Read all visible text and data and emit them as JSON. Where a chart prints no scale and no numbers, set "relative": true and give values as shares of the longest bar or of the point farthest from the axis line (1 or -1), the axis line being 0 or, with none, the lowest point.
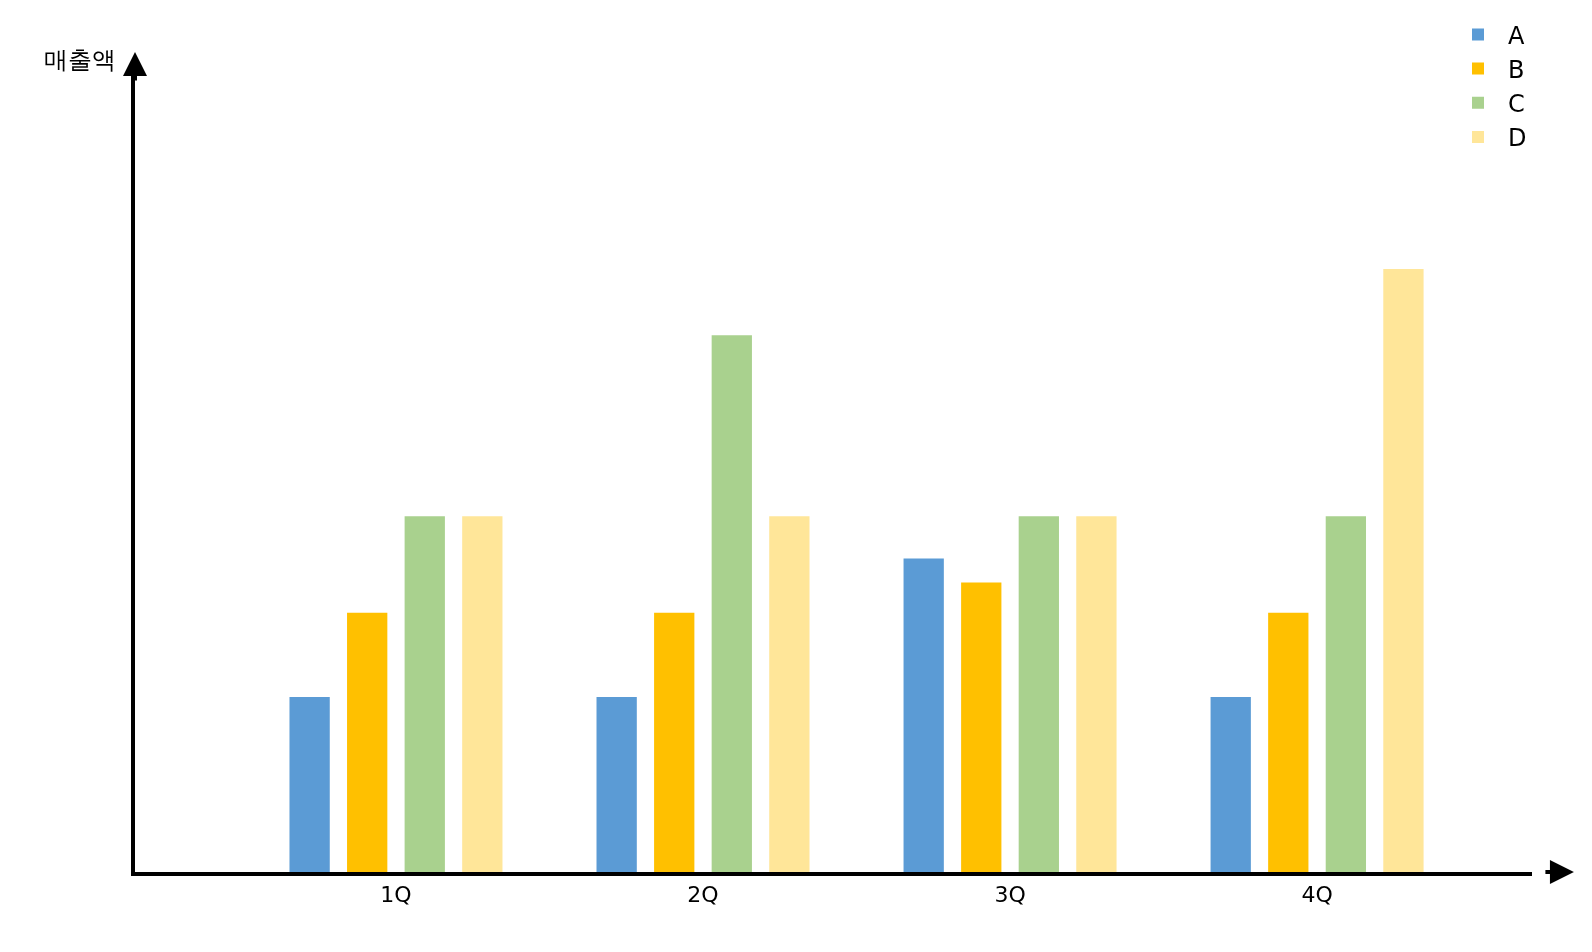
{
  "chart_data": {
    "type": "bar",
    "relative": true,
    "annotations": [
      "매출액"
    ],
    "categories": [
      "1Q",
      "2Q",
      "3Q",
      "4Q"
    ],
    "series": [
      {
        "name": "A",
        "color": "#5b9bd5",
        "values": [
          0.29,
          0.29,
          0.52,
          0.29
        ]
      },
      {
        "name": "B",
        "color": "#ffc000",
        "values": [
          0.43,
          0.43,
          0.48,
          0.43
        ]
      },
      {
        "name": "C",
        "color": "#a9d18e",
        "values": [
          0.59,
          0.89,
          0.59,
          0.59
        ]
      },
      {
        "name": "D",
        "color": "#ffe699",
        "values": [
          0.59,
          0.59,
          0.59,
          1.0
        ]
      }
    ],
    "legend": "top right"
  }
}
